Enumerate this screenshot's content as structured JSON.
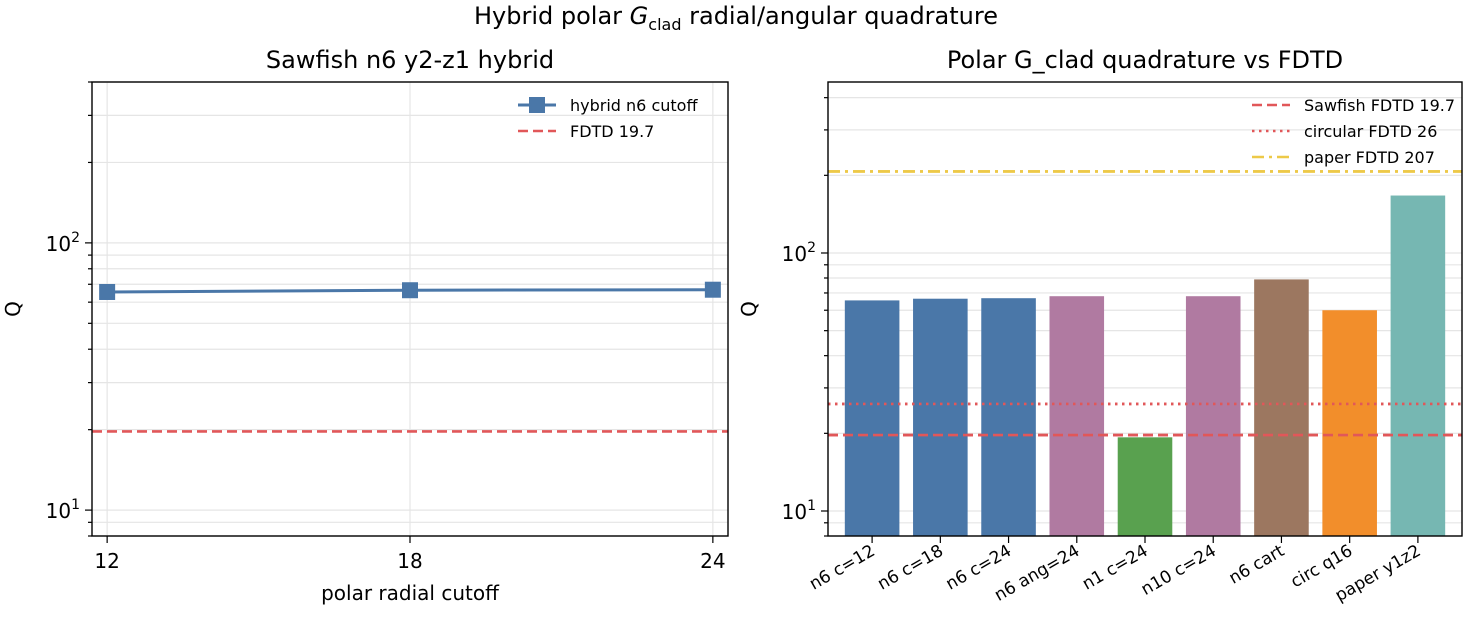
{
  "figure": {
    "suptitle_prefix": "Hybrid polar ",
    "suptitle_symbol": "G",
    "suptitle_subscript": "clad",
    "suptitle_suffix": " radial/angular quadrature"
  },
  "chart_data": [
    {
      "type": "line",
      "title": "Sawfish n6 y2-z1 hybrid",
      "xlabel": "polar radial cutoff",
      "ylabel": "Q",
      "yscale": "log",
      "ylim": [
        8,
        400
      ],
      "xlim": [
        11.7,
        24.3
      ],
      "x_ticks": [
        12,
        18,
        24
      ],
      "y_ticks": [
        {
          "value": 10,
          "base": "10",
          "exp": "1"
        },
        {
          "value": 100,
          "base": "10",
          "exp": "2"
        }
      ],
      "grid": true,
      "legend_position": "upper right",
      "series": [
        {
          "name": "hybrid n6 cutoff",
          "kind": "line",
          "color": "#4a77a8",
          "marker": "square",
          "x": [
            12,
            18,
            24
          ],
          "y": [
            65.5,
            66.5,
            66.8
          ]
        }
      ],
      "reference_lines": [
        {
          "name": "FDTD 19.7",
          "y": 19.7,
          "color": "#e15759",
          "style": "dashed"
        }
      ]
    },
    {
      "type": "bar",
      "title": "Polar G_clad quadrature vs FDTD",
      "ylabel": "Q",
      "yscale": "log",
      "ylim": [
        8,
        460
      ],
      "grid": true,
      "legend_position": "upper right",
      "categories": [
        "n6 c=12",
        "n6 c=18",
        "n6 c=24",
        "n6 ang=24",
        "n1 c=24",
        "n10 c=24",
        "n6 cart",
        "circ q16",
        "paper y1z2"
      ],
      "values": [
        65.5,
        66.5,
        66.8,
        68,
        19.3,
        68,
        79,
        60,
        167
      ],
      "colors": [
        "#4a77a8",
        "#4a77a8",
        "#4a77a8",
        "#b07aa1",
        "#59a14f",
        "#b07aa1",
        "#9c7760",
        "#f28e2b",
        "#76b7b2"
      ],
      "reference_lines": [
        {
          "name": "Sawfish FDTD 19.7",
          "y": 19.7,
          "color": "#e15759",
          "style": "dashed"
        },
        {
          "name": "circular FDTD 26",
          "y": 26,
          "color": "#e15759",
          "style": "dotted"
        },
        {
          "name": "paper FDTD 207",
          "y": 207,
          "color": "#edc948",
          "style": "dashdot"
        }
      ]
    }
  ]
}
